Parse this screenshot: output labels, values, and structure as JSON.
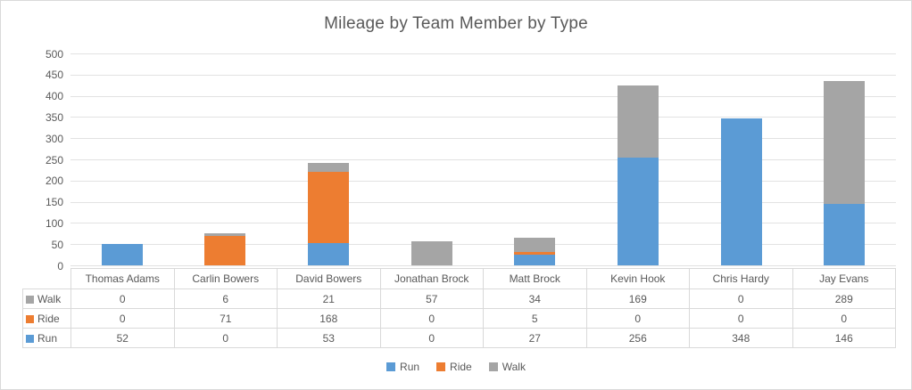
{
  "chart_data": {
    "type": "bar",
    "stacked": true,
    "title": "Mileage by Team Member by Type",
    "categories": [
      "Thomas Adams",
      "Carlin Bowers",
      "David Bowers",
      "Jonathan Brock",
      "Matt Brock",
      "Kevin Hook",
      "Chris Hardy",
      "Jay Evans"
    ],
    "series": [
      {
        "name": "Run",
        "color": "#5B9BD5",
        "values": [
          52,
          0,
          53,
          0,
          27,
          256,
          348,
          146
        ]
      },
      {
        "name": "Ride",
        "color": "#ED7D31",
        "values": [
          0,
          71,
          168,
          0,
          5,
          0,
          0,
          0
        ]
      },
      {
        "name": "Walk",
        "color": "#A5A5A5",
        "values": [
          0,
          6,
          21,
          57,
          34,
          169,
          0,
          289
        ]
      }
    ],
    "xlabel": "",
    "ylabel": "",
    "ylim": [
      0,
      500
    ],
    "ytick_step": 50,
    "ytick_labels": [
      "0",
      "50",
      "100",
      "150",
      "200",
      "250",
      "300",
      "350",
      "400",
      "450",
      "500"
    ],
    "grid": true,
    "legend": {
      "position": "bottom",
      "items": [
        "Run",
        "Ride",
        "Walk"
      ]
    },
    "data_table": {
      "visible": true,
      "row_order": [
        "Walk",
        "Ride",
        "Run"
      ]
    }
  },
  "colors": {
    "background": "#FFFFFF",
    "chart_border": "#D9D9D9",
    "gridline": "#E2E2E2",
    "table_border": "#D9D9D9",
    "title_text": "#595959",
    "axis_text": "#595959",
    "table_text": "#595959"
  }
}
